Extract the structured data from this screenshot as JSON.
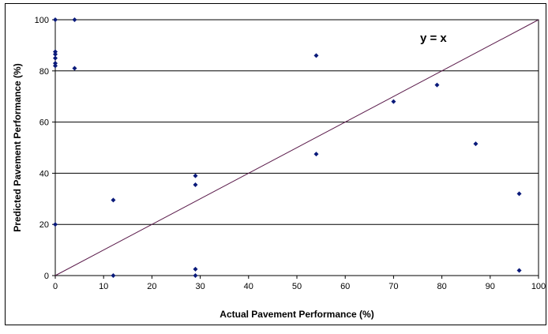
{
  "chart_data": {
    "type": "scatter",
    "title": "",
    "xlabel": "Actual Pavement Performance (%)",
    "ylabel": "Predicted Pavement Performance (%)",
    "xlim": [
      0,
      100
    ],
    "ylim": [
      0,
      100
    ],
    "x_ticks": [
      "0",
      "10",
      "20",
      "30",
      "40",
      "50",
      "60",
      "70",
      "80",
      "90",
      "100"
    ],
    "y_ticks": [
      "0",
      "20",
      "40",
      "60",
      "80",
      "100"
    ],
    "grid": "horizontal",
    "legend": "none",
    "annotation": "y = x",
    "reference_line": {
      "from": [
        0,
        0
      ],
      "to": [
        100,
        100
      ]
    },
    "colors": {
      "points": "#0a1a7a",
      "reference_line": "#5a1a4a",
      "grid": "#000000"
    },
    "series": [
      {
        "points": [
          [
            0,
            100
          ],
          [
            4,
            100
          ],
          [
            0,
            87.5
          ],
          [
            0,
            86.5
          ],
          [
            0,
            85
          ],
          [
            0,
            83
          ],
          [
            0,
            82
          ],
          [
            4,
            81
          ],
          [
            0,
            20
          ],
          [
            12,
            29.5
          ],
          [
            12,
            0
          ],
          [
            29,
            39
          ],
          [
            29,
            35.5
          ],
          [
            29,
            2.5
          ],
          [
            29,
            0
          ],
          [
            54,
            86
          ],
          [
            54,
            47.5
          ],
          [
            70,
            68
          ],
          [
            79,
            74.5
          ],
          [
            87,
            51.5
          ],
          [
            96,
            32
          ],
          [
            96,
            2
          ]
        ]
      }
    ]
  }
}
